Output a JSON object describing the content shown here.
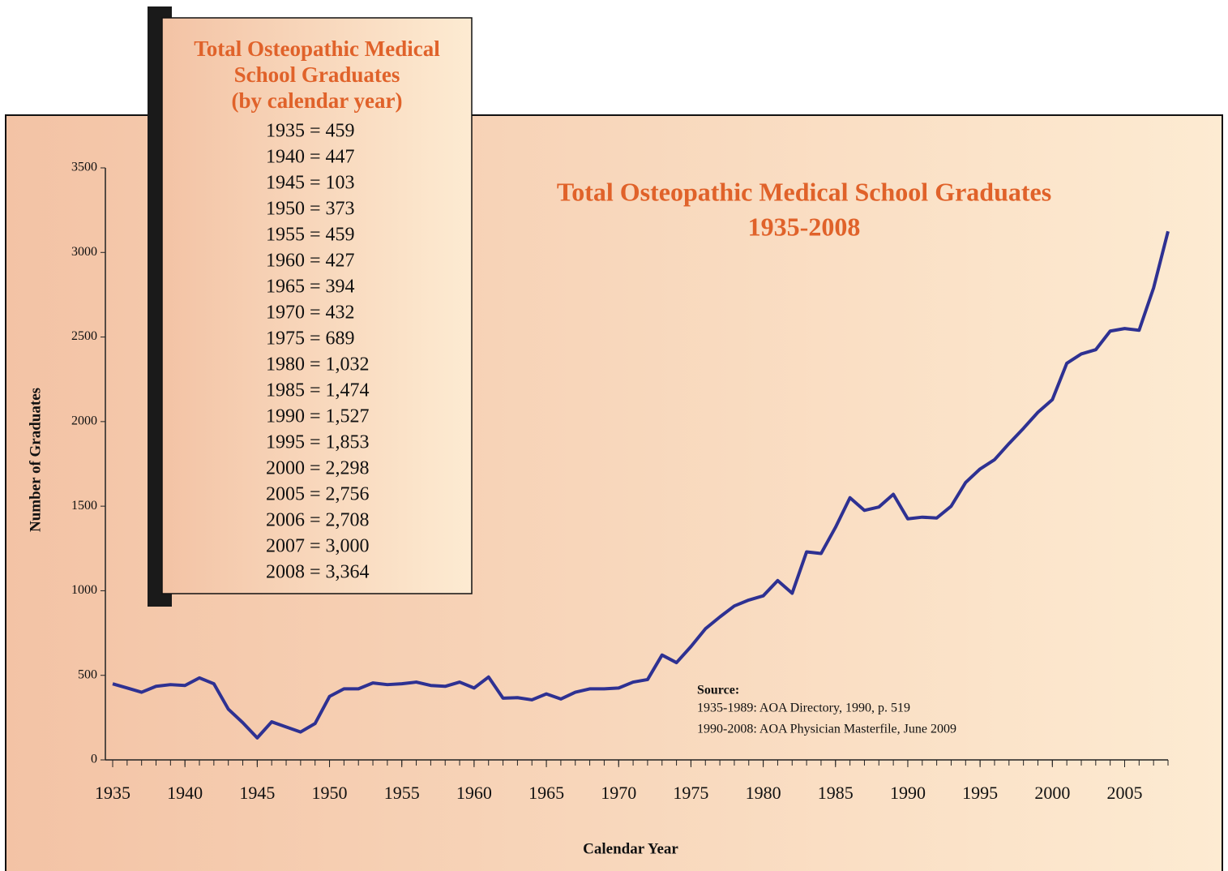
{
  "chart_data": {
    "type": "line",
    "title": [
      "Total Osteopathic Medical School Graduates",
      "1935-2008"
    ],
    "x_label": "Calendar Year",
    "y_label": "Number of Graduates",
    "x": [
      1935,
      1936,
      1937,
      1938,
      1939,
      1940,
      1941,
      1942,
      1943,
      1944,
      1945,
      1946,
      1947,
      1948,
      1949,
      1950,
      1951,
      1952,
      1953,
      1954,
      1955,
      1956,
      1957,
      1958,
      1959,
      1960,
      1961,
      1962,
      1963,
      1964,
      1965,
      1966,
      1967,
      1968,
      1969,
      1970,
      1971,
      1972,
      1973,
      1974,
      1975,
      1976,
      1977,
      1978,
      1979,
      1980,
      1981,
      1982,
      1983,
      1984,
      1985,
      1986,
      1987,
      1988,
      1989,
      1990,
      1991,
      1992,
      1993,
      1994,
      1995,
      1996,
      1997,
      1998,
      1999,
      2000,
      2001,
      2002,
      2003,
      2004,
      2005,
      2006,
      2007,
      2008
    ],
    "series": [
      {
        "name": "Graduates",
        "color": "#2e3192",
        "values": [
          450,
          425,
          400,
          435,
          445,
          440,
          485,
          450,
          300,
          220,
          130,
          225,
          195,
          165,
          215,
          375,
          420,
          420,
          455,
          445,
          450,
          460,
          440,
          435,
          460,
          425,
          490,
          365,
          368,
          355,
          390,
          360,
          400,
          420,
          420,
          425,
          460,
          475,
          620,
          575,
          670,
          775,
          845,
          910,
          945,
          970,
          1060,
          985,
          1230,
          1220,
          1375,
          1550,
          1475,
          1495,
          1570,
          1425,
          1435,
          1430,
          1500,
          1640,
          1720,
          1775,
          1870,
          1960,
          2055,
          2130,
          2345,
          2400,
          2425,
          2535,
          2550,
          2540,
          2790,
          3125
        ]
      }
    ],
    "xlim": [
      1935,
      2008
    ],
    "xticks": [
      1935,
      1940,
      1945,
      1950,
      1955,
      1960,
      1965,
      1970,
      1975,
      1980,
      1985,
      1990,
      1995,
      2000,
      2005
    ],
    "ylim": [
      0,
      3500
    ],
    "yticks": [
      0,
      500,
      1000,
      1500,
      2000,
      2500,
      3000,
      3500
    ]
  },
  "inset": {
    "title": [
      "Total Osteopathic Medical",
      "School Graduates",
      "(by calendar year)"
    ],
    "rows": [
      "1935 = 459",
      "1940 = 447",
      "1945 = 103",
      "1950 = 373",
      "1955 = 459",
      "1960 = 427",
      "1965 = 394",
      "1970 = 432",
      "1975 = 689",
      "1980 = 1,032",
      "1985 = 1,474",
      "1990 = 1,527",
      "1995 = 1,853",
      "2000 = 2,298",
      "2005 = 2,756",
      "2006 = 2,708",
      "2007 = 3,000",
      "2008 = 3,364"
    ]
  },
  "source": {
    "heading": "Source:",
    "lines": [
      "1935-1989: AOA Directory, 1990, p. 519",
      "1990-2008: AOA Physician Masterfile, June 2009"
    ]
  }
}
